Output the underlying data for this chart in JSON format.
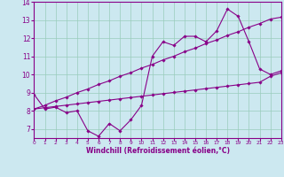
{
  "title": "",
  "xlabel": "Windchill (Refroidissement éolien,°C)",
  "ylabel": "",
  "bg_color": "#cce8f0",
  "line_color": "#880088",
  "grid_color": "#99ccbb",
  "x_data": [
    0,
    1,
    2,
    3,
    4,
    5,
    6,
    7,
    8,
    9,
    10,
    11,
    12,
    13,
    14,
    15,
    16,
    17,
    18,
    19,
    20,
    21,
    22,
    23
  ],
  "y_jagged": [
    8.9,
    8.1,
    8.2,
    7.9,
    8.0,
    6.9,
    6.6,
    7.3,
    6.9,
    7.5,
    8.3,
    11.0,
    11.8,
    11.6,
    12.1,
    12.1,
    11.8,
    12.4,
    13.6,
    13.2,
    11.8,
    10.3,
    10.0,
    10.2
  ],
  "y_upper": [
    8.1,
    8.3,
    8.55,
    8.75,
    9.0,
    9.2,
    9.45,
    9.65,
    9.9,
    10.1,
    10.35,
    10.55,
    10.8,
    11.0,
    11.25,
    11.45,
    11.7,
    11.9,
    12.15,
    12.35,
    12.6,
    12.8,
    13.05,
    13.15
  ],
  "y_lower": [
    8.1,
    8.17,
    8.24,
    8.31,
    8.38,
    8.45,
    8.52,
    8.59,
    8.66,
    8.73,
    8.8,
    8.87,
    8.94,
    9.01,
    9.08,
    9.15,
    9.22,
    9.29,
    9.36,
    9.43,
    9.5,
    9.57,
    9.9,
    10.1
  ],
  "xlim": [
    0,
    23
  ],
  "ylim": [
    6.5,
    14.0
  ],
  "yticks": [
    7,
    8,
    9,
    10,
    11,
    12,
    13,
    14
  ],
  "xticks": [
    0,
    1,
    2,
    3,
    4,
    5,
    6,
    7,
    8,
    9,
    10,
    11,
    12,
    13,
    14,
    15,
    16,
    17,
    18,
    19,
    20,
    21,
    22,
    23
  ],
  "marker": "D",
  "markersize": 1.8,
  "linewidth": 0.8
}
